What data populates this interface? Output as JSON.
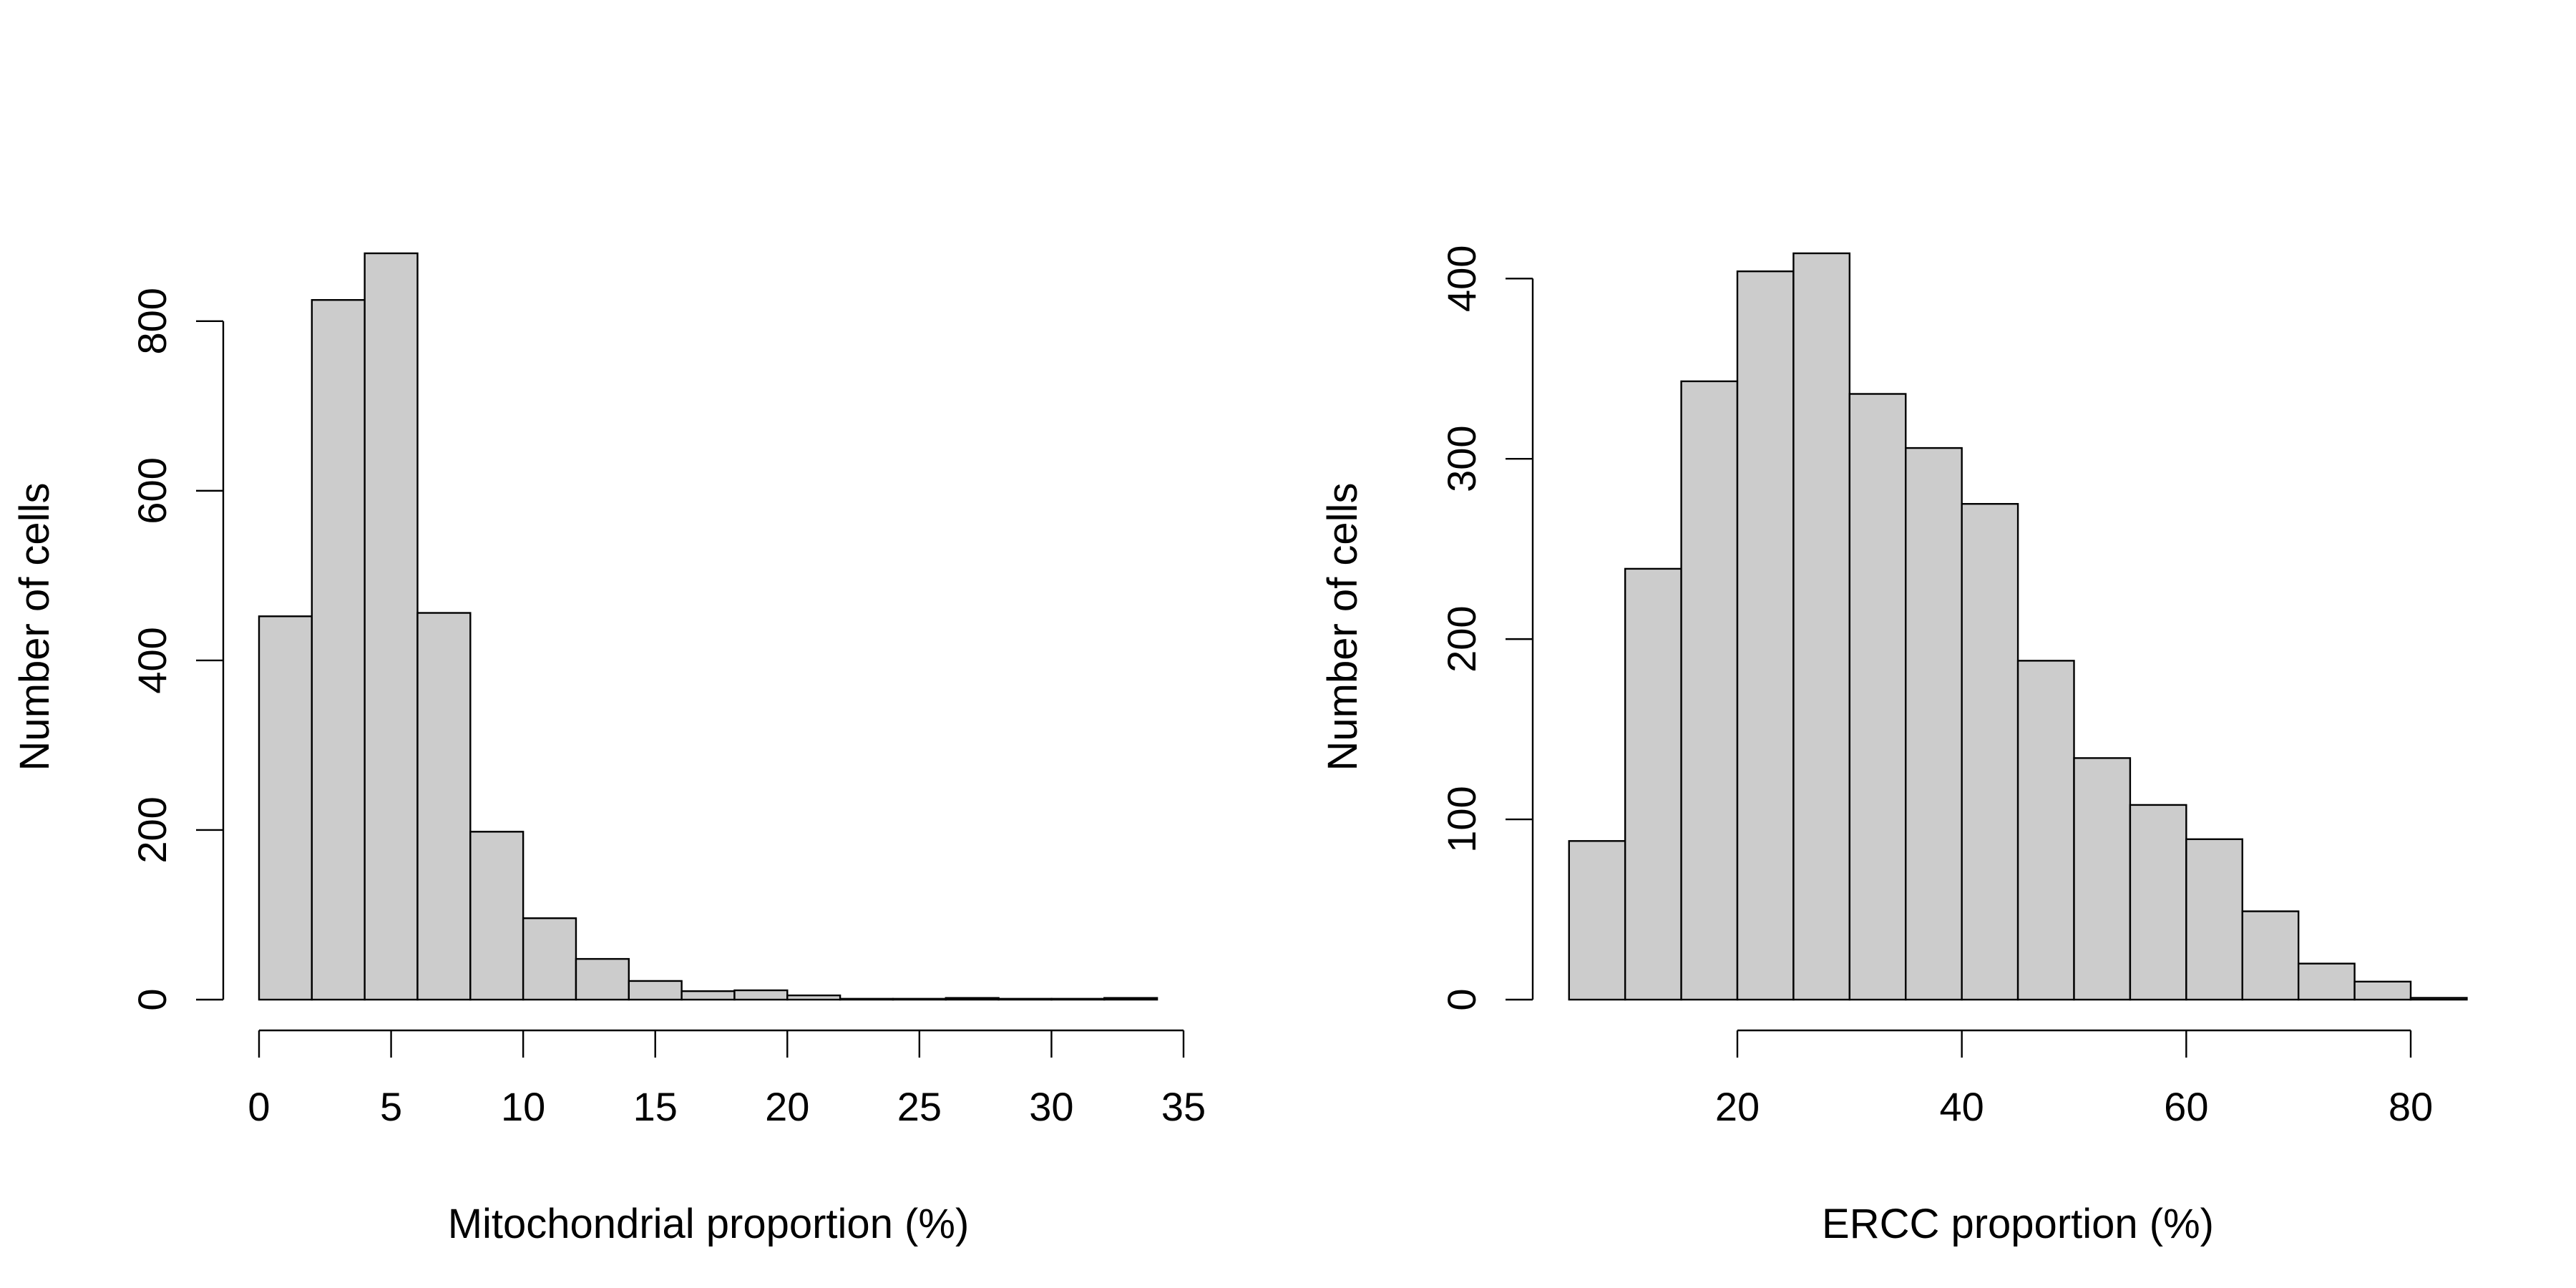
{
  "colors": {
    "bar_fill": "#cccccc",
    "bar_stroke": "#000000",
    "background": "#ffffff"
  },
  "chart_data": [
    {
      "type": "bar",
      "subtype": "histogram",
      "xlabel": "Mitochondrial proportion (%)",
      "ylabel": "Number of cells",
      "bin_edges": [
        0,
        2,
        4,
        6,
        8,
        10,
        12,
        14,
        16,
        18,
        20,
        22,
        24,
        26,
        28,
        30,
        32,
        34
      ],
      "values": [
        452,
        825,
        880,
        456,
        198,
        96,
        48,
        22,
        10,
        11,
        5,
        1,
        1,
        2,
        1,
        1,
        2
      ],
      "xlim": [
        0,
        35
      ],
      "ylim": [
        0,
        880
      ],
      "x_ticks": [
        0,
        5,
        10,
        15,
        20,
        25,
        30,
        35
      ],
      "y_ticks": [
        0,
        200,
        400,
        600,
        800
      ],
      "grid": false,
      "legend": "none"
    },
    {
      "type": "bar",
      "subtype": "histogram",
      "xlabel": "ERCC proportion (%)",
      "ylabel": "Number of cells",
      "bin_edges": [
        5,
        10,
        15,
        20,
        25,
        30,
        35,
        40,
        45,
        50,
        55,
        60,
        65,
        70,
        75,
        80,
        85
      ],
      "values": [
        88,
        239,
        343,
        404,
        414,
        336,
        306,
        275,
        188,
        134,
        108,
        89,
        49,
        20,
        10,
        1
      ],
      "xlim": [
        20,
        80
      ],
      "ylim": [
        0,
        414
      ],
      "x_ticks": [
        20,
        40,
        60,
        80
      ],
      "y_ticks": [
        0,
        100,
        200,
        300,
        400
      ],
      "grid": false,
      "legend": "none"
    }
  ]
}
